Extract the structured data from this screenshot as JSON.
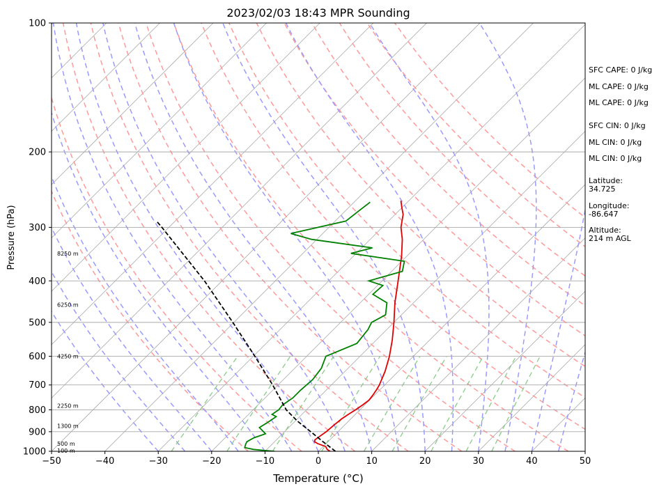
{
  "chart_data": {
    "type": "line",
    "title": "2023/02/03 18:43 MPR Sounding",
    "xlabel": "Temperature (°C)",
    "ylabel": "Pressure (hPa)",
    "xlim": [
      -50,
      50
    ],
    "ylim": [
      1000,
      100
    ],
    "yscale": "log",
    "skew": "skew-T log-P",
    "x_ticks": [
      "−50",
      "−40",
      "−30",
      "−20",
      "−10",
      "0",
      "10",
      "20",
      "30",
      "40",
      "50"
    ],
    "y_ticks": [
      {
        "p": 100,
        "label": "100"
      },
      {
        "p": 200,
        "label": "200"
      },
      {
        "p": 300,
        "label": "300"
      },
      {
        "p": 400,
        "label": "400"
      },
      {
        "p": 500,
        "label": "500"
      },
      {
        "p": 600,
        "label": "600"
      },
      {
        "p": 700,
        "label": "700"
      },
      {
        "p": 800,
        "label": "800"
      },
      {
        "p": 900,
        "label": "900"
      },
      {
        "p": 1000,
        "label": "1000"
      }
    ],
    "grid": true,
    "series": [
      {
        "name": "temperature",
        "color": "#e00000",
        "points": [
          [
            1000,
            2.2
          ],
          [
            990,
            1.3
          ],
          [
            975,
            0.5
          ],
          [
            960,
            -1.5
          ],
          [
            950,
            -2.5
          ],
          [
            940,
            -2.8
          ],
          [
            920,
            -2.5
          ],
          [
            900,
            -2.2
          ],
          [
            870,
            -2.0
          ],
          [
            840,
            -1.7
          ],
          [
            820,
            -1.3
          ],
          [
            800,
            -0.8
          ],
          [
            780,
            -0.4
          ],
          [
            760,
            -0.1
          ],
          [
            740,
            -0.3
          ],
          [
            720,
            -0.6
          ],
          [
            700,
            -1.0
          ],
          [
            650,
            -2.5
          ],
          [
            600,
            -4.5
          ],
          [
            550,
            -7.0
          ],
          [
            500,
            -10.0
          ],
          [
            450,
            -13.5
          ],
          [
            400,
            -17.0
          ],
          [
            350,
            -21.0
          ],
          [
            320,
            -24.0
          ],
          [
            300,
            -26.5
          ],
          [
            280,
            -28.5
          ],
          [
            270,
            -30.0
          ],
          [
            260,
            -31.5
          ]
        ]
      },
      {
        "name": "dewpoint",
        "color": "#008000",
        "points": [
          [
            1000,
            -8.2
          ],
          [
            995,
            -10.5
          ],
          [
            990,
            -12.5
          ],
          [
            980,
            -14.5
          ],
          [
            965,
            -14.9
          ],
          [
            950,
            -15.2
          ],
          [
            930,
            -14.6
          ],
          [
            910,
            -13.2
          ],
          [
            880,
            -15.5
          ],
          [
            860,
            -15.0
          ],
          [
            830,
            -14.4
          ],
          [
            820,
            -15.6
          ],
          [
            800,
            -15.2
          ],
          [
            780,
            -15.4
          ],
          [
            750,
            -14.8
          ],
          [
            720,
            -14.8
          ],
          [
            680,
            -14.5
          ],
          [
            640,
            -15.0
          ],
          [
            600,
            -16.4
          ],
          [
            560,
            -13.0
          ],
          [
            520,
            -13.5
          ],
          [
            500,
            -14.2
          ],
          [
            480,
            -13.0
          ],
          [
            450,
            -15.0
          ],
          [
            430,
            -19.2
          ],
          [
            410,
            -19.0
          ],
          [
            400,
            -22.5
          ],
          [
            380,
            -18.0
          ],
          [
            360,
            -19.5
          ],
          [
            345,
            -31.0
          ],
          [
            335,
            -28.0
          ],
          [
            320,
            -41.0
          ],
          [
            310,
            -46.0
          ],
          [
            290,
            -38.0
          ],
          [
            275,
            -37.5
          ],
          [
            262,
            -37.0
          ]
        ]
      },
      {
        "name": "parcel",
        "color": "#000000",
        "points": [
          [
            1000,
            3.2
          ],
          [
            950,
            -0.9
          ],
          [
            900,
            -5.1
          ],
          [
            850,
            -9.6
          ],
          [
            800,
            -13.8
          ],
          [
            700,
            -21.0
          ],
          [
            600,
            -29.7
          ],
          [
            500,
            -40.2
          ],
          [
            400,
            -53.3
          ],
          [
            300,
            -71.3
          ],
          [
            290,
            -73.5
          ]
        ]
      }
    ],
    "altitude_labels": [
      {
        "p": 1000,
        "label": "100 m"
      },
      {
        "p": 960,
        "label": "500 m"
      },
      {
        "p": 872,
        "label": "1300 m"
      },
      {
        "p": 783,
        "label": "2250 m"
      },
      {
        "p": 600,
        "label": "4250 m"
      },
      {
        "p": 455,
        "label": "6250 m"
      },
      {
        "p": 345,
        "label": "8250 m"
      }
    ],
    "annotations": [
      "SFC CAPE: 0 J/kg",
      "ML CAPE: 0 J/kg",
      "ML CAPE: 0 J/kg",
      "SFC CIN: 0 J/kg",
      "ML CIN: 0 J/kg",
      "ML CIN: 0 J/kg",
      "Latitude:",
      "34.725",
      "Longitude:",
      "-86.647",
      "Altitude:",
      "214 m AGL"
    ],
    "background_lines": {
      "isotherms": {
        "color": "#a9a9a9",
        "start": -150,
        "end": 50,
        "step": 10
      },
      "dry_adiabats": {
        "color": "#ff9999",
        "thetas_K": [
          260,
          270,
          280,
          290,
          300,
          310,
          320,
          330,
          340,
          350,
          360,
          370,
          380,
          390,
          400
        ]
      },
      "moist_adiabats": {
        "color": "#9999ff",
        "start_T_C": [
          -30,
          -25,
          -20,
          -15,
          -10,
          -5,
          0,
          5,
          10,
          15,
          20,
          25,
          30,
          35,
          40,
          45
        ]
      },
      "mixing_ratio": {
        "color": "#88cc88",
        "values_gkg": [
          0.4,
          1,
          2,
          4,
          7,
          10,
          16,
          24,
          32
        ]
      }
    }
  }
}
